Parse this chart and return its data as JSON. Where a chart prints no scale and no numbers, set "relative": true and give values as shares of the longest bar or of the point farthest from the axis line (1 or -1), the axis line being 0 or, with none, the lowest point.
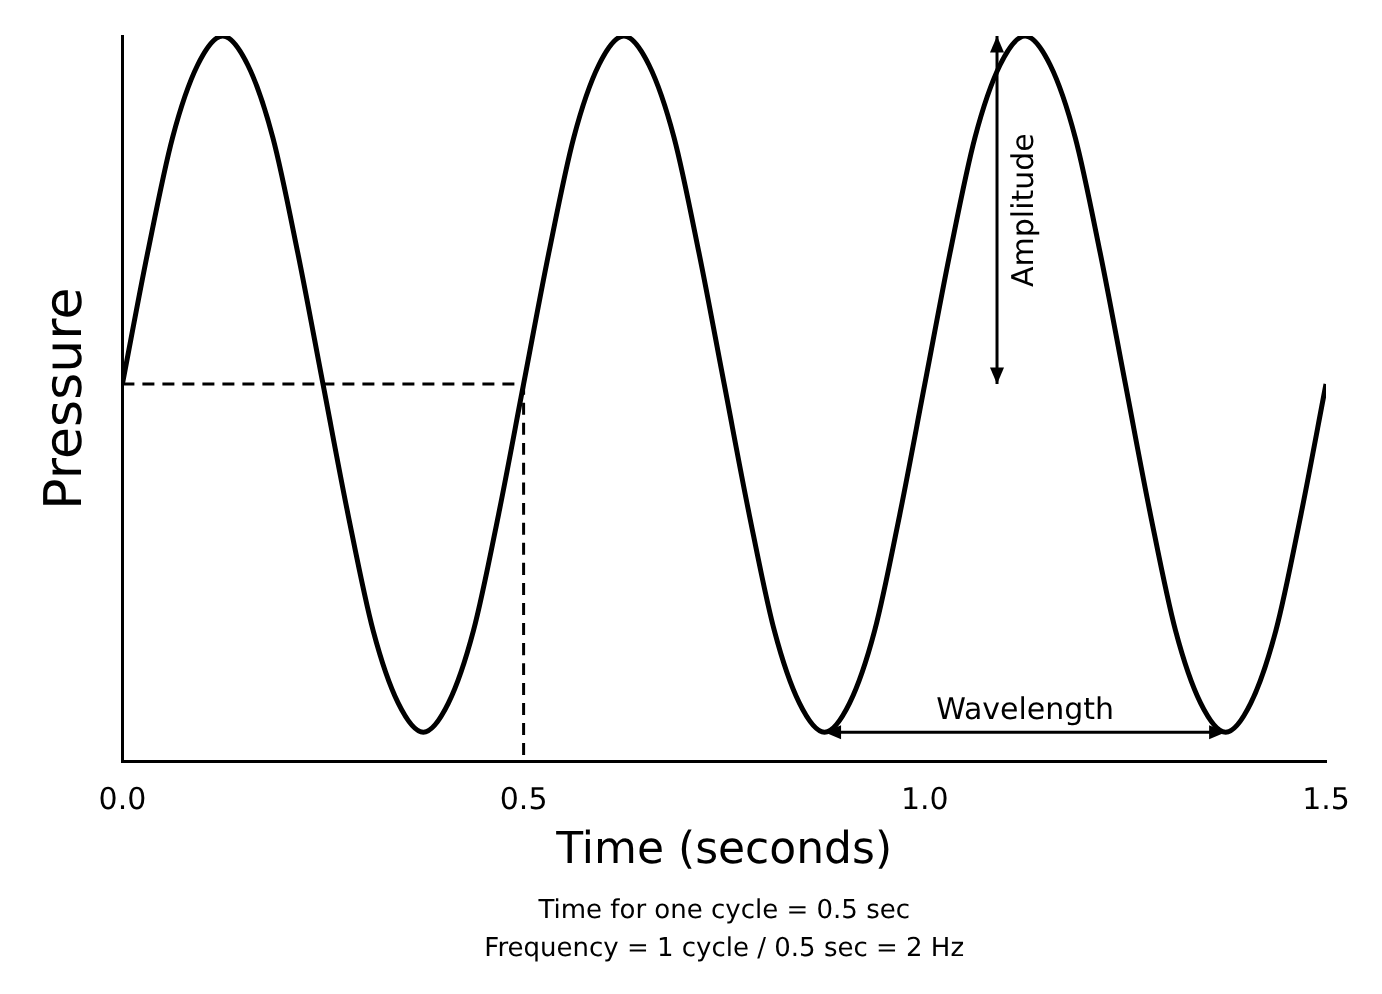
{
  "chart_data": {
    "type": "line",
    "relative": true,
    "xlabel": "Time (seconds)",
    "ylabel": "Pressure",
    "tick_labels": "x",
    "grid": false,
    "legend": false,
    "marker": "none",
    "xlim": [
      0,
      1.5
    ],
    "xticks": [
      {
        "value": 0,
        "label": "0.0"
      },
      {
        "value": 0.5,
        "label": "0.5"
      },
      {
        "value": 1,
        "label": "1.0"
      },
      {
        "value": 1.5,
        "label": "1.5"
      }
    ],
    "series": [
      {
        "color": "#000000",
        "line_style": "solid",
        "x": [
          0,
          0.03125,
          0.0625,
          0.09375,
          0.125,
          0.15625,
          0.1875,
          0.21875,
          0.25,
          0.28125,
          0.3125,
          0.34375,
          0.375,
          0.40625,
          0.4375,
          0.46875,
          0.5,
          0.53125,
          0.5625,
          0.59375,
          0.625,
          0.65625,
          0.6875,
          0.71875,
          0.75,
          0.78125,
          0.8125,
          0.84375,
          0.875,
          0.90625,
          0.9375,
          0.96875,
          1,
          1.03125,
          1.0625,
          1.09375,
          1.125,
          1.15625,
          1.1875,
          1.21875,
          1.25,
          1.28125,
          1.3125,
          1.34375,
          1.375,
          1.40625,
          1.4375,
          1.46875,
          1.5
        ],
        "values": [
          0.52,
          0.7,
          0.86,
          0.96,
          1,
          0.96,
          0.86,
          0.7,
          0.52,
          0.34,
          0.18,
          0.08,
          0.04,
          0.08,
          0.18,
          0.34,
          0.52,
          0.7,
          0.86,
          0.96,
          1,
          0.96,
          0.86,
          0.7,
          0.52,
          0.34,
          0.18,
          0.08,
          0.04,
          0.08,
          0.18,
          0.34,
          0.52,
          0.7,
          0.86,
          0.96,
          1,
          0.96,
          0.86,
          0.7,
          0.52,
          0.34,
          0.18,
          0.08,
          0.04,
          0.08,
          0.18,
          0.34,
          0.52
        ]
      },
      {
        "color": "#000000",
        "line_style": "dashed",
        "x": [
          0,
          0.5,
          0.5
        ],
        "values": [
          0.52,
          0.52,
          0
        ]
      }
    ],
    "annotations": [
      "Amplitude",
      "Wavelength",
      "Time for one cycle = 0.5 sec",
      "Frequency = 1 cycle / 0.5 sec = 2 Hz"
    ]
  }
}
